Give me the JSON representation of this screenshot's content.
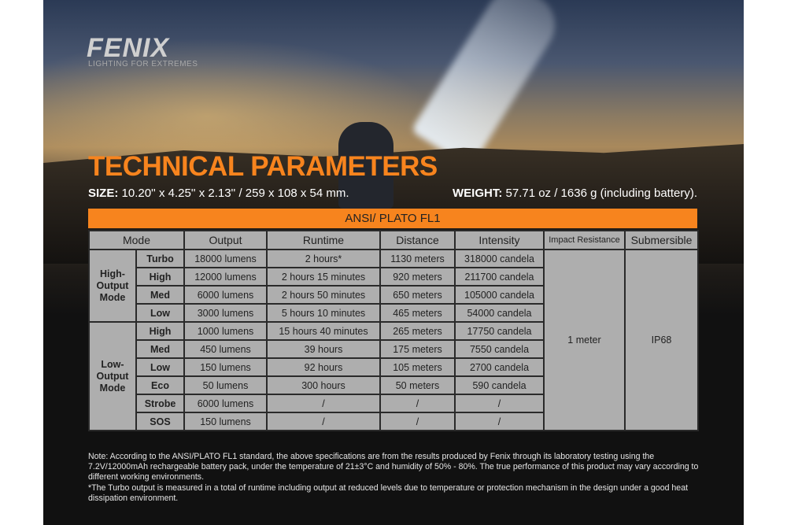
{
  "brand": {
    "logo": "FENIX",
    "tagline": "LIGHTING FOR EXTREMES"
  },
  "title": "TECHNICAL PARAMETERS",
  "size": {
    "label": "SIZE:",
    "value": " 10.20'' x 4.25'' x 2.13'' / 259 x 108 x 54 mm."
  },
  "weight": {
    "label": "WEIGHT:",
    "value": " 57.71 oz / 1636 g (including battery)."
  },
  "standard": "ANSI/ PLATO  FL1",
  "table": {
    "headers": [
      "Mode",
      "Output",
      "Runtime",
      "Distance",
      "Intensity",
      "Impact Resistance",
      "Submersible"
    ],
    "groups": [
      "High-Output Mode",
      "Low-Output Mode"
    ],
    "impact": "1 meter",
    "submersible": "IP68",
    "rows": [
      {
        "mode": "Turbo",
        "output": "18000 lumens",
        "runtime": "2 hours*",
        "distance": "1130 meters",
        "intensity": "318000 candela"
      },
      {
        "mode": "High",
        "output": "12000 lumens",
        "runtime": "2 hours 15 minutes",
        "distance": "920 meters",
        "intensity": "211700 candela"
      },
      {
        "mode": "Med",
        "output": "6000 lumens",
        "runtime": "2 hours 50 minutes",
        "distance": "650 meters",
        "intensity": "105000 candela"
      },
      {
        "mode": "Low",
        "output": "3000 lumens",
        "runtime": "5 hours 10 minutes",
        "distance": "465 meters",
        "intensity": "54000 candela"
      },
      {
        "mode": "High",
        "output": "1000 lumens",
        "runtime": "15 hours 40 minutes",
        "distance": "265 meters",
        "intensity": "17750 candela"
      },
      {
        "mode": "Med",
        "output": "450 lumens",
        "runtime": "39 hours",
        "distance": "175 meters",
        "intensity": "7550 candela"
      },
      {
        "mode": "Low",
        "output": "150 lumens",
        "runtime": "92 hours",
        "distance": "105 meters",
        "intensity": "2700 candela"
      },
      {
        "mode": "Eco",
        "output": "50 lumens",
        "runtime": "300 hours",
        "distance": "50 meters",
        "intensity": "590 candela"
      },
      {
        "mode": "Strobe",
        "output": "6000 lumens",
        "runtime": "/",
        "distance": "/",
        "intensity": "/"
      },
      {
        "mode": "SOS",
        "output": "150 lumens",
        "runtime": "/",
        "distance": "/",
        "intensity": "/"
      }
    ]
  },
  "notes": [
    "Note: According to the ANSI/PLATO FL1 standard, the above specifications are from the results produced by Fenix through its laboratory testing using the 7.2V/12000mAh rechargeable battery pack, under the temperature of 21±3°C and humidity of 50% - 80%. The true performance of this product may vary according to different working environments.",
    "*The Turbo output is measured in a total of runtime including output at reduced levels due to temperature or protection mechanism in the design under a good heat dissipation environment."
  ],
  "colors": {
    "accent": "#f7841e",
    "cell": "#aeaeae",
    "background": "#111111"
  }
}
